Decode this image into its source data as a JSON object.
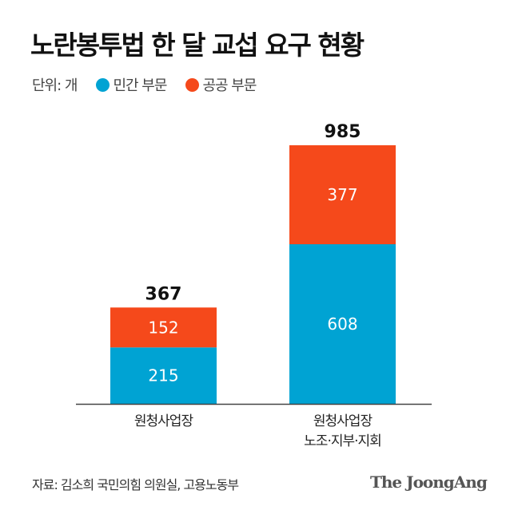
{
  "title": "노란봉투법 한 달 교섭 요구 현황",
  "unit_label": "단위: 개",
  "colors": {
    "private": "#00a3d3",
    "public": "#f5491b"
  },
  "chart_data": {
    "type": "bar",
    "stacked": true,
    "title": "노란봉투법 한 달 교섭 요구 현황",
    "unit": "단위: 개",
    "categories": [
      "원청사업장",
      "원청사업장\n노조·지부·지회"
    ],
    "category_lines": [
      [
        "원청사업장"
      ],
      [
        "원청사업장",
        "노조·지부·지회"
      ]
    ],
    "series": [
      {
        "name": "민간 부문",
        "values": [
          215,
          608
        ]
      },
      {
        "name": "공공 부문",
        "values": [
          152,
          377
        ]
      }
    ],
    "totals": [
      367,
      985
    ],
    "legend": "top-left",
    "grid": false
  },
  "source": "자료: 김소희 국민의힘 의원실, 고용노동부",
  "logo": "The JoongAng"
}
